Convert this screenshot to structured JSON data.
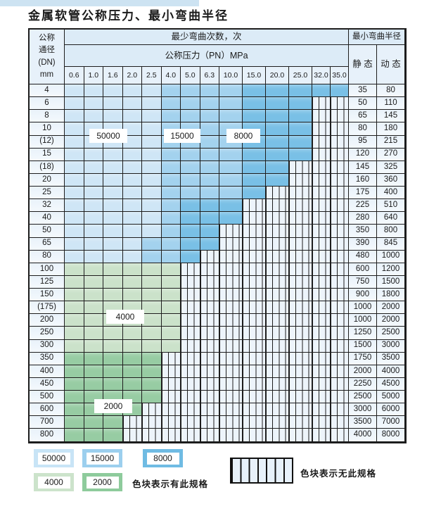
{
  "title": "金属软管公称压力、最小弯曲半径",
  "table": {
    "corner": {
      "l1": "公称",
      "l2": "通径",
      "l3": "(DN)",
      "l4": "mm"
    },
    "top_header": "最少弯曲次数，次",
    "pressure_header": "公称压力（PN）MPa",
    "radius_header": "最小弯曲半径",
    "static_label": "静 态",
    "dynamic_label": "动 态",
    "pressures": [
      "0.6",
      "1.0",
      "1.6",
      "2.0",
      "2.5",
      "4.0",
      "5.0",
      "6.3",
      "10.0",
      "15.0",
      "20.0",
      "25.0",
      "32.0",
      "35.0"
    ],
    "rows": [
      {
        "dn": "4",
        "regions": "LLLLLMMMMDDDDD",
        "static": "35",
        "dynamic": "80"
      },
      {
        "dn": "6",
        "regions": "LLLLLMMMMDDDNN",
        "static": "50",
        "dynamic": "110"
      },
      {
        "dn": "8",
        "regions": "LLLLLMMMMDDDNN",
        "static": "65",
        "dynamic": "145"
      },
      {
        "dn": "10",
        "regions": "LLLLLMMMMDDDNN",
        "static": "80",
        "dynamic": "180"
      },
      {
        "dn": "(12)",
        "regions": "LLLLLMMMMDDDNN",
        "static": "95",
        "dynamic": "215"
      },
      {
        "dn": "15",
        "regions": "LLLLLMMMMDDDNN",
        "static": "120",
        "dynamic": "270"
      },
      {
        "dn": "(18)",
        "regions": "LLLLLMMMMDDNNN",
        "static": "145",
        "dynamic": "325"
      },
      {
        "dn": "20",
        "regions": "LLLLLMMMMDDNNN",
        "static": "160",
        "dynamic": "360"
      },
      {
        "dn": "25",
        "regions": "LLLLLMMMMDNNNN",
        "static": "175",
        "dynamic": "400"
      },
      {
        "dn": "32",
        "regions": "LLLLLMDDDNNNNN",
        "static": "225",
        "dynamic": "510"
      },
      {
        "dn": "40",
        "regions": "LLLLLMDDDNNNNN",
        "static": "280",
        "dynamic": "640"
      },
      {
        "dn": "50",
        "regions": "LLLLLMDDNNNNNN",
        "static": "350",
        "dynamic": "800"
      },
      {
        "dn": "65",
        "regions": "LLLLMMDDNNNNNN",
        "static": "390",
        "dynamic": "845"
      },
      {
        "dn": "80",
        "regions": "LLLLMMDNNNNNNN",
        "static": "480",
        "dynamic": "1000"
      },
      {
        "dn": "100",
        "regions": "GGGGGGNNNNNNNN",
        "static": "600",
        "dynamic": "1200"
      },
      {
        "dn": "125",
        "regions": "GGGGGGNNNNNNNN",
        "static": "750",
        "dynamic": "1500"
      },
      {
        "dn": "150",
        "regions": "GGGGGGNNNNNNNN",
        "static": "900",
        "dynamic": "1800"
      },
      {
        "dn": "(175)",
        "regions": "GGGGGGNNNNNNNN",
        "static": "1000",
        "dynamic": "2000"
      },
      {
        "dn": "200",
        "regions": "GGGGGGNNNNNNNN",
        "static": "1000",
        "dynamic": "2000"
      },
      {
        "dn": "250",
        "regions": "GGGGGGNNNNNNNN",
        "static": "1250",
        "dynamic": "2500"
      },
      {
        "dn": "300",
        "regions": "GGGGGGNNNNNNNN",
        "static": "1500",
        "dynamic": "3000"
      },
      {
        "dn": "350",
        "regions": "EEEEENNNNNNNNN",
        "static": "1750",
        "dynamic": "3500"
      },
      {
        "dn": "400",
        "regions": "EEEEENNNNNNNNN",
        "static": "2000",
        "dynamic": "4000"
      },
      {
        "dn": "450",
        "regions": "EEEEENNNNNNNNN",
        "static": "2250",
        "dynamic": "4500"
      },
      {
        "dn": "500",
        "regions": "EEEEENNNNNNNNN",
        "static": "2500",
        "dynamic": "5000"
      },
      {
        "dn": "600",
        "regions": "EEEENNNNNNNNNN",
        "static": "3000",
        "dynamic": "6000"
      },
      {
        "dn": "700",
        "regions": "EEENNNNNNNNNNN",
        "static": "3500",
        "dynamic": "7000"
      },
      {
        "dn": "800",
        "regions": "EEENNNNNNNNNNN",
        "static": "4000",
        "dynamic": "8000"
      }
    ]
  },
  "region_colors": {
    "L": "#cfe6f6",
    "M": "#a3d2ee",
    "D": "#79c0e6",
    "G": "#cbe2ca",
    "E": "#97cca3",
    "none": "#edf4fb"
  },
  "overlays": {
    "o50000": "50000",
    "o15000": "15000",
    "o8000": "8000",
    "o4000": "4000",
    "o2000": "2000"
  },
  "legend": {
    "chips": [
      {
        "value": "50000",
        "color": "#c8e4f6"
      },
      {
        "value": "15000",
        "color": "#9ccfee"
      },
      {
        "value": "8000",
        "color": "#6fbbe3"
      },
      {
        "value": "4000",
        "color": "#cce3cb"
      },
      {
        "value": "2000",
        "color": "#8ecb9c"
      }
    ],
    "has_spec_text": "色块表示有此规格",
    "no_spec_text": "色块表示无此规格"
  }
}
